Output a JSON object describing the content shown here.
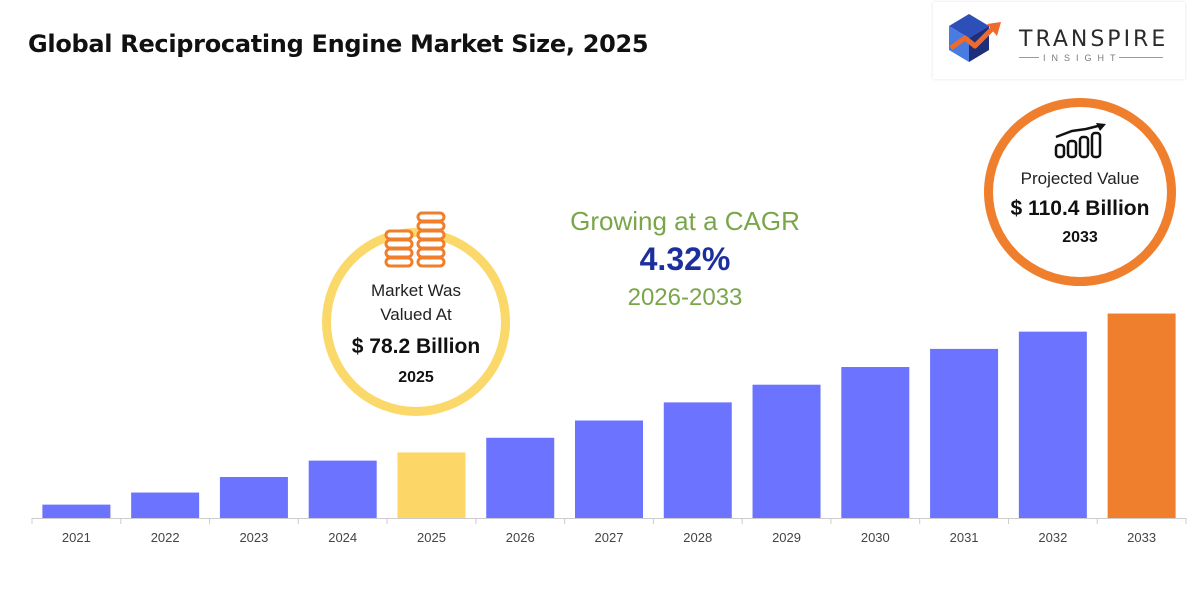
{
  "header": {
    "title": "Global Reciprocating Engine Market Size, 2025"
  },
  "logo": {
    "name": "TRANSPIRE",
    "tagline": "INSIGHT"
  },
  "cagr": {
    "label": "Growing at a CAGR",
    "value": "4.32%",
    "period": "2026-2033"
  },
  "callout_2025": {
    "label_line1": "Market Was",
    "label_line2": "Valued At",
    "value": "$ 78.2 Billion",
    "year": "2025",
    "icon": "coin-stack-icon",
    "ring_color": "#fbd86a"
  },
  "callout_2033": {
    "label": "Projected Value",
    "value": "$ 110.4 Billion",
    "year": "2033",
    "icon": "growth-chart-icon",
    "ring_color": "#ef7f2d"
  },
  "chart_data": {
    "type": "bar",
    "categories": [
      "2021",
      "2022",
      "2023",
      "2024",
      "2025",
      "2026",
      "2027",
      "2028",
      "2029",
      "2030",
      "2031",
      "2032",
      "2033"
    ],
    "values": [
      66.1,
      68.9,
      72.5,
      76.3,
      78.2,
      81.6,
      85.6,
      89.8,
      93.9,
      98.0,
      102.2,
      106.2,
      110.4
    ],
    "ylim": [
      63,
      114
    ],
    "colors": {
      "default": "#6b73ff",
      "highlight_2025": "#fcd667",
      "highlight_2033": "#ef7f2d",
      "axis": "#cccccc"
    },
    "grid": false,
    "legend": "none"
  }
}
